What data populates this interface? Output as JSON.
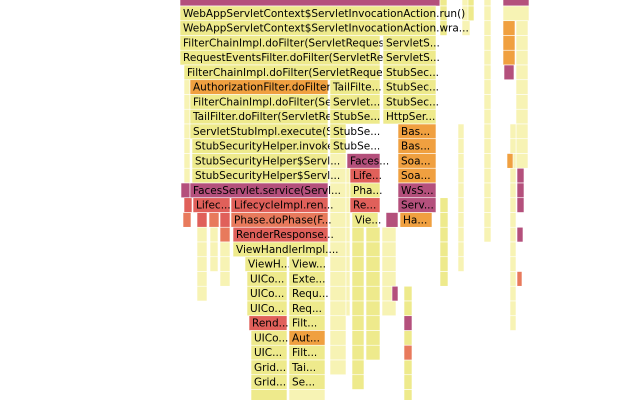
{
  "frames": [
    {
      "label": "WebAppServletContext$ServletInvocationAction.run()"
    },
    {
      "label": "WebAppServletContext$ServletInvocationAction.wra..."
    },
    {
      "label": "FilterChainImpl.doFilter(ServletRequest, ..."
    },
    {
      "label": "ServletS..."
    },
    {
      "label": "RequestEventsFilter.doFilter(ServletRequ..."
    },
    {
      "label": "ServletS..."
    },
    {
      "label": "FilterChainImpl.doFilter(ServletRequest,..."
    },
    {
      "label": "StubSec..."
    },
    {
      "label": "AuthorizationFilter.doFilter(..."
    },
    {
      "label": "TailFilte..."
    },
    {
      "label": "StubSec..."
    },
    {
      "label": "FilterChainImpl.doFilter(Se..."
    },
    {
      "label": "Servlet..."
    },
    {
      "label": "StubSec..."
    },
    {
      "label": "TailFilter.doFilter(ServletRe..."
    },
    {
      "label": "StubSe..."
    },
    {
      "label": "HttpSer..."
    },
    {
      "label": "ServletStubImpl.execute(S..."
    },
    {
      "label": "StubSe..."
    },
    {
      "label": "Bas..."
    },
    {
      "label": "StubSecurityHelper.invoke..."
    },
    {
      "label": "StubSe..."
    },
    {
      "label": "Bas..."
    },
    {
      "label": "StubSecurityHelper$Servl..."
    },
    {
      "label": "Faces..."
    },
    {
      "label": "Soa..."
    },
    {
      "label": "StubSecurityHelper$Servl..."
    },
    {
      "label": "Life..."
    },
    {
      "label": "Soa..."
    },
    {
      "label": "FacesServlet.service(Servl..."
    },
    {
      "label": "Pha..."
    },
    {
      "label": "WsS..."
    },
    {
      "label": "Lifec..."
    },
    {
      "label": "LifecycleImpl.ren..."
    },
    {
      "label": "Re..."
    },
    {
      "label": "Serv..."
    },
    {
      "label": "Phase.doPhase(F..."
    },
    {
      "label": "Vie..."
    },
    {
      "label": "Ha..."
    },
    {
      "label": "RenderResponse..."
    },
    {
      "label": "ViewHandlerImpl...."
    },
    {
      "label": "ViewH..."
    },
    {
      "label": "View..."
    },
    {
      "label": "UICo..."
    },
    {
      "label": "Exte..."
    },
    {
      "label": "UICo..."
    },
    {
      "label": "Requ..."
    },
    {
      "label": "UICo..."
    },
    {
      "label": "Req..."
    },
    {
      "label": "Rend..."
    },
    {
      "label": "Filt..."
    },
    {
      "label": "UICo..."
    },
    {
      "label": "Aut..."
    },
    {
      "label": "UIC..."
    },
    {
      "label": "Filt..."
    },
    {
      "label": "Grid..."
    },
    {
      "label": "Tai..."
    },
    {
      "label": "Grid..."
    },
    {
      "label": "Se..."
    }
  ]
}
